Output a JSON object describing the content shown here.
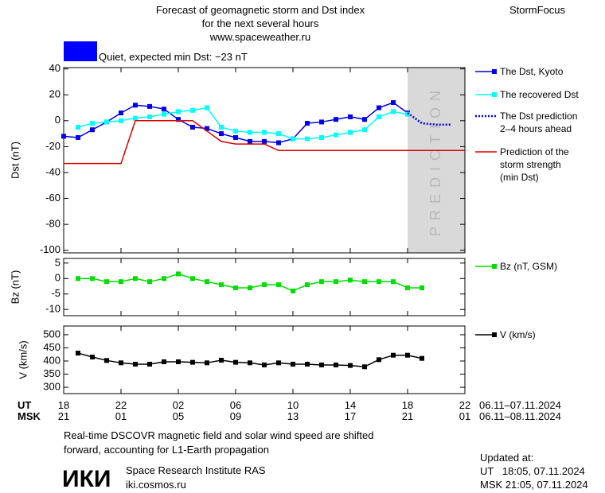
{
  "header": {
    "title": [
      "Forecast of geomagnetic storm and Dst index",
      "for the next several hours",
      "www.spaceweather.ru"
    ],
    "brand": "StormFocus",
    "status": "Quiet, expected min Dst: −23 nT",
    "status_color": "#0000ff"
  },
  "chart_data": [
    {
      "type": "line",
      "ylabel": "Dst (nT)",
      "xlim": [
        0,
        28
      ],
      "ylim": [
        -102,
        41
      ],
      "yticks": [
        40,
        20,
        0,
        -20,
        -40,
        -60,
        -80,
        -100
      ],
      "band": {
        "x": [
          24,
          28
        ],
        "label": "PREDICTION",
        "color": "#d9d9d9"
      },
      "series": [
        {
          "name": "The Dst, Kyoto",
          "color": "#0000ee",
          "marker": "square",
          "dash": false,
          "x": [
            0,
            1,
            2,
            3,
            4,
            5,
            6,
            7,
            8,
            9,
            10,
            11,
            12,
            13,
            14,
            15,
            16,
            17,
            18,
            19,
            20,
            21,
            22,
            23,
            24
          ],
          "values": [
            -12,
            -13,
            -7,
            -1,
            6,
            12,
            11,
            9,
            1,
            -5,
            -6,
            -10,
            -13,
            -16,
            -16,
            -17,
            -14,
            -2,
            -1,
            1,
            3,
            1,
            10,
            14,
            6
          ]
        },
        {
          "name": "The recovered Dst",
          "color": "#00ffff",
          "marker": "square",
          "dash": false,
          "x": [
            1,
            2,
            3,
            4,
            5,
            6,
            7,
            8,
            9,
            10,
            11,
            12,
            13,
            14,
            15,
            16,
            17,
            18,
            19,
            20,
            21,
            22,
            23,
            24
          ],
          "values": [
            -5,
            -2,
            -1,
            0,
            2,
            3,
            5,
            7,
            8,
            10,
            -5,
            -8,
            -9,
            -9,
            -10,
            -14,
            -14,
            -13,
            -11,
            -9,
            -7,
            3,
            7,
            5
          ]
        },
        {
          "name": "The Dst prediction\n2–4 hours ahead",
          "color": "#0000ee",
          "marker": "none",
          "dash": true,
          "x": [
            24,
            25,
            26,
            27
          ],
          "values": [
            6,
            -2,
            -3,
            -3
          ]
        },
        {
          "name": "Prediction of the\nstorm strength\n(min Dst)",
          "color": "#dd0000",
          "marker": "none",
          "dash": false,
          "x": [
            0,
            4,
            5,
            9,
            11,
            12,
            14,
            15,
            28
          ],
          "values": [
            -33,
            -33,
            0,
            0,
            -16,
            -18,
            -18,
            -23,
            -23
          ]
        }
      ]
    },
    {
      "type": "line",
      "ylabel": "Bz (nT)",
      "xlim": [
        0,
        28
      ],
      "ylim": [
        -12,
        6.5
      ],
      "yticks": [
        5,
        0,
        -5,
        -10
      ],
      "series": [
        {
          "name": "Bz (nT, GSM)",
          "color": "#00dd00",
          "marker": "square",
          "dash": false,
          "x": [
            1,
            2,
            3,
            4,
            5,
            6,
            7,
            8,
            9,
            10,
            11,
            12,
            13,
            14,
            15,
            16,
            17,
            18,
            19,
            20,
            21,
            22,
            23,
            24,
            25
          ],
          "values": [
            0,
            0,
            -1,
            -1,
            0,
            -1,
            0,
            1.5,
            0,
            -1,
            -2,
            -3,
            -3,
            -2,
            -2,
            -4,
            -2,
            -1,
            -1,
            -0.5,
            -1,
            -1,
            -1,
            -3,
            -3
          ]
        }
      ]
    },
    {
      "type": "line",
      "ylabel": "V (km/s)",
      "xlim": [
        0,
        28
      ],
      "ylim": [
        276,
        533
      ],
      "yticks": [
        500,
        450,
        400,
        350,
        300
      ],
      "xlabel": "UT",
      "x_range": "06.11–07.11.2024",
      "xticks": [
        {
          "value": 0,
          "label": "18"
        },
        {
          "value": 4,
          "label": "22"
        },
        {
          "value": 8,
          "label": "02"
        },
        {
          "value": 12,
          "label": "06"
        },
        {
          "value": 16,
          "label": "10"
        },
        {
          "value": 20,
          "label": "14"
        },
        {
          "value": 24,
          "label": "18"
        },
        {
          "value": 28,
          "label": "22"
        }
      ],
      "x2label": "MSK",
      "x2_range": "06.11–08.11.2024",
      "x2ticks": [
        {
          "value": 0,
          "label": "21"
        },
        {
          "value": 4,
          "label": "01"
        },
        {
          "value": 8,
          "label": "05"
        },
        {
          "value": 12,
          "label": "09"
        },
        {
          "value": 16,
          "label": "13"
        },
        {
          "value": 20,
          "label": "17"
        },
        {
          "value": 24,
          "label": "21"
        },
        {
          "value": 28,
          "label": "01"
        }
      ],
      "series": [
        {
          "name": "V (km/s)",
          "color": "#000000",
          "marker": "square",
          "dash": false,
          "x": [
            1,
            2,
            3,
            4,
            5,
            6,
            7,
            8,
            9,
            10,
            11,
            12,
            13,
            14,
            15,
            16,
            17,
            18,
            19,
            20,
            21,
            22,
            23,
            24,
            25
          ],
          "values": [
            430,
            415,
            402,
            393,
            388,
            388,
            397,
            397,
            395,
            393,
            403,
            395,
            393,
            385,
            393,
            388,
            388,
            385,
            385,
            383,
            378,
            405,
            422,
            422,
            410
          ]
        }
      ]
    }
  ],
  "footer": {
    "note": [
      "Real-time DSCOVR magnetic field and solar wind speed are shifted",
      "forward, accounting for L1-Earth propagation"
    ],
    "logo": "ИКИ",
    "institute": "Space Research Institute RAS",
    "site": "iki.cosmos.ru",
    "updated": [
      "Updated at:",
      "UT   18:05, 07.11.2024",
      "MSK 21:05, 07.11.2024"
    ]
  }
}
